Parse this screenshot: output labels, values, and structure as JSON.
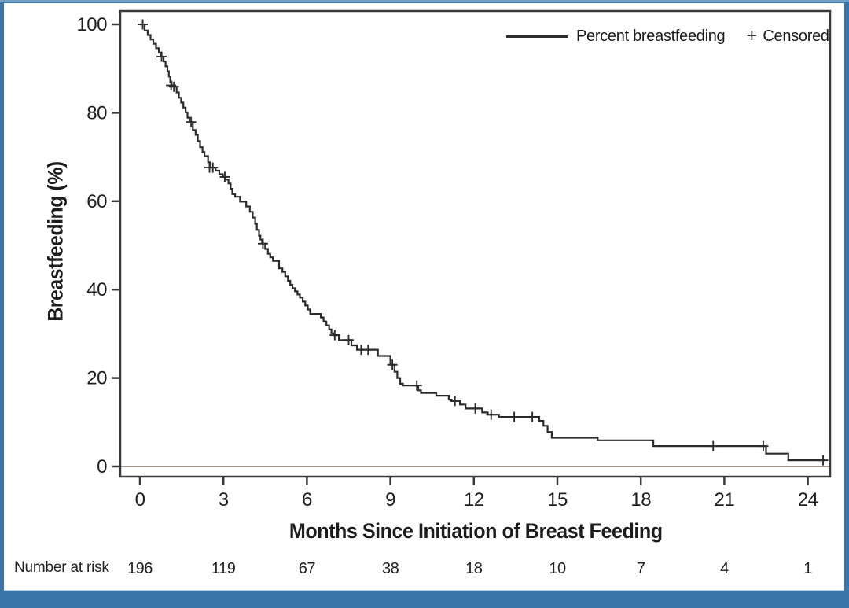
{
  "figure": {
    "frame_color": "#3a76a8",
    "background": "#ffffff"
  },
  "chart_data": {
    "type": "line",
    "subtype": "kaplan-meier-step",
    "title": "",
    "xlabel": "Months Since Initiation of Breast Feeding",
    "ylabel": "Breastfeeding (%)",
    "xlim": [
      0,
      24
    ],
    "ylim": [
      0,
      100
    ],
    "x_ticks": [
      0,
      3,
      6,
      9,
      12,
      15,
      18,
      21,
      24
    ],
    "y_ticks": [
      0,
      20,
      40,
      60,
      80,
      100
    ],
    "grid": false,
    "curve_color": "#2b2b2b",
    "zero_reference_line": {
      "y": 0,
      "color": "#a3978d"
    },
    "legend": {
      "position": "top-right-inside",
      "entries": [
        {
          "label": "Percent breastfeeding",
          "marker": "line"
        },
        {
          "label": "Censored",
          "marker": "plus",
          "marker_glyph": "+"
        }
      ]
    },
    "series": [
      {
        "name": "Percent breastfeeding",
        "points": [
          [
            0,
            100
          ],
          [
            0.17,
            98.6
          ],
          [
            0.28,
            97.6
          ],
          [
            0.38,
            96.6
          ],
          [
            0.48,
            95.6
          ],
          [
            0.58,
            94.6
          ],
          [
            0.68,
            93.6
          ],
          [
            0.76,
            92.7
          ],
          [
            0.85,
            91.6
          ],
          [
            0.92,
            90.5
          ],
          [
            0.99,
            89.4
          ],
          [
            1.04,
            88.2
          ],
          [
            1.09,
            86.9
          ],
          [
            1.14,
            86.2
          ],
          [
            1.25,
            85.9
          ],
          [
            1.32,
            84.6
          ],
          [
            1.4,
            83.4
          ],
          [
            1.48,
            82.3
          ],
          [
            1.56,
            81.2
          ],
          [
            1.64,
            80.1
          ],
          [
            1.71,
            78.9
          ],
          [
            1.78,
            77.9
          ],
          [
            1.9,
            76.1
          ],
          [
            2.0,
            75.0
          ],
          [
            2.08,
            73.6
          ],
          [
            2.16,
            72.2
          ],
          [
            2.25,
            71.1
          ],
          [
            2.32,
            70.2
          ],
          [
            2.45,
            68.8
          ],
          [
            2.52,
            67.6
          ],
          [
            2.72,
            66.9
          ],
          [
            2.85,
            66.1
          ],
          [
            2.98,
            65.5
          ],
          [
            3.08,
            64.9
          ],
          [
            3.18,
            64.0
          ],
          [
            3.26,
            62.8
          ],
          [
            3.32,
            61.6
          ],
          [
            3.42,
            61.0
          ],
          [
            3.6,
            59.9
          ],
          [
            3.82,
            58.8
          ],
          [
            3.95,
            57.6
          ],
          [
            4.05,
            56.3
          ],
          [
            4.14,
            54.9
          ],
          [
            4.2,
            53.5
          ],
          [
            4.28,
            52.2
          ],
          [
            4.33,
            51.3
          ],
          [
            4.39,
            50.4
          ],
          [
            4.5,
            49.2
          ],
          [
            4.6,
            48.1
          ],
          [
            4.68,
            47.3
          ],
          [
            4.78,
            46.5
          ],
          [
            5.0,
            44.8
          ],
          [
            5.12,
            44.0
          ],
          [
            5.22,
            43.0
          ],
          [
            5.32,
            42.0
          ],
          [
            5.4,
            41.1
          ],
          [
            5.48,
            40.3
          ],
          [
            5.57,
            39.6
          ],
          [
            5.66,
            38.9
          ],
          [
            5.75,
            38.2
          ],
          [
            5.85,
            37.3
          ],
          [
            5.94,
            36.4
          ],
          [
            6.03,
            35.5
          ],
          [
            6.12,
            34.5
          ],
          [
            6.5,
            33.7
          ],
          [
            6.6,
            32.8
          ],
          [
            6.7,
            31.9
          ],
          [
            6.8,
            31.0
          ],
          [
            6.88,
            30.1
          ],
          [
            6.95,
            29.7
          ],
          [
            7.15,
            28.6
          ],
          [
            7.6,
            27.4
          ],
          [
            7.8,
            26.4
          ],
          [
            8.55,
            25.0
          ],
          [
            9.0,
            23.0
          ],
          [
            9.15,
            21.4
          ],
          [
            9.25,
            20.0
          ],
          [
            9.35,
            18.7
          ],
          [
            9.45,
            18.3
          ],
          [
            10.0,
            17.2
          ],
          [
            10.1,
            16.6
          ],
          [
            10.65,
            16.0
          ],
          [
            11.1,
            15.1
          ],
          [
            11.2,
            14.8
          ],
          [
            11.5,
            14.0
          ],
          [
            11.7,
            13.1
          ],
          [
            12.3,
            12.2
          ],
          [
            12.5,
            11.7
          ],
          [
            12.9,
            11.2
          ],
          [
            14.35,
            10.3
          ],
          [
            14.5,
            9.2
          ],
          [
            14.65,
            7.8
          ],
          [
            14.8,
            6.5
          ],
          [
            16.45,
            5.9
          ],
          [
            18.45,
            4.6
          ],
          [
            22.5,
            2.9
          ],
          [
            23.3,
            1.4
          ],
          [
            24.6,
            1.4
          ]
        ]
      }
    ],
    "censored_marks": [
      [
        0.1,
        100
      ],
      [
        0.78,
        92.7
      ],
      [
        1.12,
        86.2
      ],
      [
        1.22,
        85.9
      ],
      [
        1.84,
        77.9
      ],
      [
        2.5,
        67.6
      ],
      [
        2.62,
        67.6
      ],
      [
        3.05,
        65.5
      ],
      [
        4.42,
        50.4
      ],
      [
        7.0,
        29.7
      ],
      [
        7.5,
        28.6
      ],
      [
        7.95,
        26.4
      ],
      [
        8.2,
        26.4
      ],
      [
        9.07,
        23.0
      ],
      [
        9.95,
        18.3
      ],
      [
        11.32,
        14.8
      ],
      [
        12.05,
        13.1
      ],
      [
        12.62,
        11.7
      ],
      [
        13.45,
        11.2
      ],
      [
        14.1,
        11.2
      ],
      [
        20.6,
        4.6
      ],
      [
        22.4,
        4.6
      ],
      [
        24.55,
        1.4
      ]
    ],
    "number_at_risk": {
      "label": "Number at risk",
      "months": [
        0,
        3,
        6,
        9,
        12,
        15,
        18,
        21,
        24
      ],
      "values": [
        196,
        119,
        67,
        38,
        18,
        10,
        7,
        4,
        1
      ]
    }
  }
}
